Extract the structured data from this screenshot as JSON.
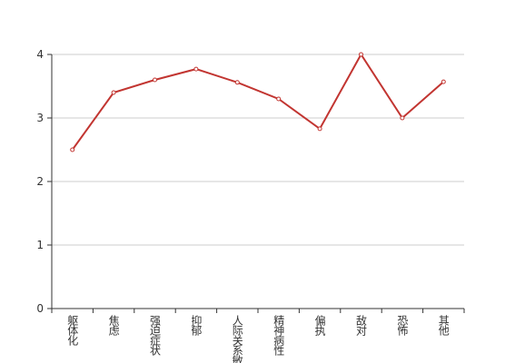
{
  "chart_data": {
    "type": "line",
    "categories": [
      "躯体化",
      "焦虑",
      "强迫症状",
      "抑郁",
      "人际关系敏感",
      "精神病性",
      "偏执",
      "敌对",
      "恐怖",
      "其他"
    ],
    "series": [
      {
        "color": "#c23531",
        "values": [
          2.5,
          3.4,
          3.6,
          3.77,
          3.56,
          3.3,
          2.83,
          4.0,
          3.0,
          3.57
        ]
      }
    ],
    "ylim": [
      0,
      4
    ],
    "yticks": [
      0,
      1,
      2,
      3,
      4
    ],
    "grid": true
  }
}
